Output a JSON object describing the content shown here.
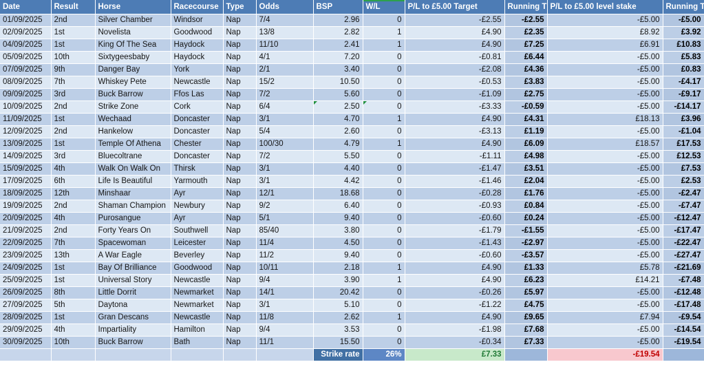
{
  "table": {
    "columns": [
      {
        "key": "date",
        "label": "Date"
      },
      {
        "key": "result",
        "label": "Result"
      },
      {
        "key": "horse",
        "label": "Horse"
      },
      {
        "key": "racecourse",
        "label": "Racecourse"
      },
      {
        "key": "type",
        "label": "Type"
      },
      {
        "key": "odds",
        "label": "Odds"
      },
      {
        "key": "bsp",
        "label": "BSP"
      },
      {
        "key": "wl",
        "label": "W/L"
      },
      {
        "key": "pl_target",
        "label": "P/L to £5.00 Target"
      },
      {
        "key": "run_target",
        "label": "Running T"
      },
      {
        "key": "pl_level",
        "label": "P/L to £5.00 level stake"
      },
      {
        "key": "run_level",
        "label": "Running T"
      }
    ],
    "rows": [
      {
        "date": "01/09/2025",
        "result": "2nd",
        "horse": "Silver Chamber",
        "racecourse": "Windsor",
        "type": "Nap",
        "odds": "7/4",
        "bsp": "2.96",
        "wl": "0",
        "pl_target": "-£2.55",
        "run_target": "-£2.55",
        "pl_level": "-£5.00",
        "run_level": "-£5.00"
      },
      {
        "date": "02/09/2025",
        "result": "1st",
        "horse": "Novelista",
        "racecourse": "Goodwood",
        "type": "Nap",
        "odds": "13/8",
        "bsp": "2.82",
        "wl": "1",
        "pl_target": "£4.90",
        "run_target": "£2.35",
        "pl_level": "£8.92",
        "run_level": "£3.92"
      },
      {
        "date": "04/09/2025",
        "result": "1st",
        "horse": "King Of The Sea",
        "racecourse": "Haydock",
        "type": "Nap",
        "odds": "11/10",
        "bsp": "2.41",
        "wl": "1",
        "pl_target": "£4.90",
        "run_target": "£7.25",
        "pl_level": "£6.91",
        "run_level": "£10.83"
      },
      {
        "date": "05/09/2025",
        "result": "10th",
        "horse": "Sixtygeesbaby",
        "racecourse": "Haydock",
        "type": "Nap",
        "odds": "4/1",
        "bsp": "7.20",
        "wl": "0",
        "pl_target": "-£0.81",
        "run_target": "£6.44",
        "pl_level": "-£5.00",
        "run_level": "£5.83"
      },
      {
        "date": "07/09/2025",
        "result": "9th",
        "horse": "Danger Bay",
        "racecourse": "York",
        "type": "Nap",
        "odds": "2/1",
        "bsp": "3.40",
        "wl": "0",
        "pl_target": "-£2.08",
        "run_target": "£4.36",
        "pl_level": "-£5.00",
        "run_level": "£0.83"
      },
      {
        "date": "08/09/2025",
        "result": "7th",
        "horse": "Whiskey Pete",
        "racecourse": "Newcastle",
        "type": "Nap",
        "odds": "15/2",
        "bsp": "10.50",
        "wl": "0",
        "pl_target": "-£0.53",
        "run_target": "£3.83",
        "pl_level": "-£5.00",
        "run_level": "-£4.17"
      },
      {
        "date": "09/09/2025",
        "result": "3rd",
        "horse": "Buck Barrow",
        "racecourse": "Ffos Las",
        "type": "Nap",
        "odds": "7/2",
        "bsp": "5.60",
        "wl": "0",
        "pl_target": "-£1.09",
        "run_target": "£2.75",
        "pl_level": "-£5.00",
        "run_level": "-£9.17"
      },
      {
        "date": "10/09/2025",
        "result": "2nd",
        "horse": "Strike Zone",
        "racecourse": "Cork",
        "type": "Nap",
        "odds": "6/4",
        "bsp": "2.50",
        "wl": "0",
        "pl_target": "-£3.33",
        "run_target": "-£0.59",
        "pl_level": "-£5.00",
        "run_level": "-£14.17",
        "flags": [
          "bsp",
          "wl"
        ]
      },
      {
        "date": "11/09/2025",
        "result": "1st",
        "horse": "Wechaad",
        "racecourse": "Doncaster",
        "type": "Nap",
        "odds": "3/1",
        "bsp": "4.70",
        "wl": "1",
        "pl_target": "£4.90",
        "run_target": "£4.31",
        "pl_level": "£18.13",
        "run_level": "£3.96"
      },
      {
        "date": "12/09/2025",
        "result": "2nd",
        "horse": "Hankelow",
        "racecourse": "Doncaster",
        "type": "Nap",
        "odds": "5/4",
        "bsp": "2.60",
        "wl": "0",
        "pl_target": "-£3.13",
        "run_target": "£1.19",
        "pl_level": "-£5.00",
        "run_level": "-£1.04"
      },
      {
        "date": "13/09/2025",
        "result": "1st",
        "horse": "Temple Of Athena",
        "racecourse": "Chester",
        "type": "Nap",
        "odds": "100/30",
        "bsp": "4.79",
        "wl": "1",
        "pl_target": "£4.90",
        "run_target": "£6.09",
        "pl_level": "£18.57",
        "run_level": "£17.53"
      },
      {
        "date": "14/09/2025",
        "result": "3rd",
        "horse": "Bluecoltrane",
        "racecourse": "Doncaster",
        "type": "Nap",
        "odds": "7/2",
        "bsp": "5.50",
        "wl": "0",
        "pl_target": "-£1.11",
        "run_target": "£4.98",
        "pl_level": "-£5.00",
        "run_level": "£12.53"
      },
      {
        "date": "15/09/2025",
        "result": "4th",
        "horse": "Walk On Walk On",
        "racecourse": "Thirsk",
        "type": "Nap",
        "odds": "3/1",
        "bsp": "4.40",
        "wl": "0",
        "pl_target": "-£1.47",
        "run_target": "£3.51",
        "pl_level": "-£5.00",
        "run_level": "£7.53"
      },
      {
        "date": "17/09/2025",
        "result": "6th",
        "horse": "Life Is Beautiful",
        "racecourse": "Yarmouth",
        "type": "Nap",
        "odds": "3/1",
        "bsp": "4.42",
        "wl": "0",
        "pl_target": "-£1.46",
        "run_target": "£2.04",
        "pl_level": "-£5.00",
        "run_level": "£2.53"
      },
      {
        "date": "18/09/2025",
        "result": "12th",
        "horse": "Minshaar",
        "racecourse": "Ayr",
        "type": "Nap",
        "odds": "12/1",
        "bsp": "18.68",
        "wl": "0",
        "pl_target": "-£0.28",
        "run_target": "£1.76",
        "pl_level": "-£5.00",
        "run_level": "-£2.47"
      },
      {
        "date": "19/09/2025",
        "result": "2nd",
        "horse": "Shaman Champion",
        "racecourse": "Newbury",
        "type": "Nap",
        "odds": "9/2",
        "bsp": "6.40",
        "wl": "0",
        "pl_target": "-£0.93",
        "run_target": "£0.84",
        "pl_level": "-£5.00",
        "run_level": "-£7.47"
      },
      {
        "date": "20/09/2025",
        "result": "4th",
        "horse": "Purosangue",
        "racecourse": "Ayr",
        "type": "Nap",
        "odds": "5/1",
        "bsp": "9.40",
        "wl": "0",
        "pl_target": "-£0.60",
        "run_target": "£0.24",
        "pl_level": "-£5.00",
        "run_level": "-£12.47"
      },
      {
        "date": "21/09/2025",
        "result": "2nd",
        "horse": "Forty Years On",
        "racecourse": "Southwell",
        "type": "Nap",
        "odds": "85/40",
        "bsp": "3.80",
        "wl": "0",
        "pl_target": "-£1.79",
        "run_target": "-£1.55",
        "pl_level": "-£5.00",
        "run_level": "-£17.47"
      },
      {
        "date": "22/09/2025",
        "result": "7th",
        "horse": "Spacewoman",
        "racecourse": "Leicester",
        "type": "Nap",
        "odds": "11/4",
        "bsp": "4.50",
        "wl": "0",
        "pl_target": "-£1.43",
        "run_target": "-£2.97",
        "pl_level": "-£5.00",
        "run_level": "-£22.47"
      },
      {
        "date": "23/09/2025",
        "result": "13th",
        "horse": "A War Eagle",
        "racecourse": "Beverley",
        "type": "Nap",
        "odds": "11/2",
        "bsp": "9.40",
        "wl": "0",
        "pl_target": "-£0.60",
        "run_target": "-£3.57",
        "pl_level": "-£5.00",
        "run_level": "-£27.47"
      },
      {
        "date": "24/09/2025",
        "result": "1st",
        "horse": "Bay Of Brilliance",
        "racecourse": "Goodwood",
        "type": "Nap",
        "odds": "10/11",
        "bsp": "2.18",
        "wl": "1",
        "pl_target": "£4.90",
        "run_target": "£1.33",
        "pl_level": "£5.78",
        "run_level": "-£21.69"
      },
      {
        "date": "25/09/2025",
        "result": "1st",
        "horse": "Universal Story",
        "racecourse": "Newcastle",
        "type": "Nap",
        "odds": "9/4",
        "bsp": "3.90",
        "wl": "1",
        "pl_target": "£4.90",
        "run_target": "£6.23",
        "pl_level": "£14.21",
        "run_level": "-£7.48"
      },
      {
        "date": "26/09/2025",
        "result": "8th",
        "horse": "Little Dorrit",
        "racecourse": "Newmarket",
        "type": "Nap",
        "odds": "14/1",
        "bsp": "20.42",
        "wl": "0",
        "pl_target": "-£0.26",
        "run_target": "£5.97",
        "pl_level": "-£5.00",
        "run_level": "-£12.48"
      },
      {
        "date": "27/09/2025",
        "result": "5th",
        "horse": "Daytona",
        "racecourse": "Newmarket",
        "type": "Nap",
        "odds": "3/1",
        "bsp": "5.10",
        "wl": "0",
        "pl_target": "-£1.22",
        "run_target": "£4.75",
        "pl_level": "-£5.00",
        "run_level": "-£17.48"
      },
      {
        "date": "28/09/2025",
        "result": "1st",
        "horse": "Gran Descans",
        "racecourse": "Newcastle",
        "type": "Nap",
        "odds": "11/8",
        "bsp": "2.62",
        "wl": "1",
        "pl_target": "£4.90",
        "run_target": "£9.65",
        "pl_level": "£7.94",
        "run_level": "-£9.54"
      },
      {
        "date": "29/09/2025",
        "result": "4th",
        "horse": "Impartiality",
        "racecourse": "Hamilton",
        "type": "Nap",
        "odds": "9/4",
        "bsp": "3.53",
        "wl": "0",
        "pl_target": "-£1.98",
        "run_target": "£7.68",
        "pl_level": "-£5.00",
        "run_level": "-£14.54"
      },
      {
        "date": "30/09/2025",
        "result": "10th",
        "horse": "Buck Barrow",
        "racecourse": "Bath",
        "type": "Nap",
        "odds": "11/1",
        "bsp": "15.50",
        "wl": "0",
        "pl_target": "-£0.34",
        "run_target": "£7.33",
        "pl_level": "-£5.00",
        "run_level": "-£19.54"
      }
    ],
    "totals": {
      "strike_rate_label": "Strike rate",
      "strike_rate_value": "26%",
      "target_total": "£7.33",
      "level_stake_total": "-£19.54"
    }
  },
  "colors": {
    "header_bg": "#4d7cb5",
    "band_a": "#bdcfe7",
    "band_b": "#dde8f4",
    "run_a": "#b1c5e0",
    "run_b": "#bccee6",
    "totals_left_bg": "#c7d6eb",
    "strike_label_bg": "#4170a4",
    "strike_value_bg": "#5d87c5",
    "totals_running_bg": "#9db7da",
    "total_pos_bg": "#c8e9ca",
    "total_pos_text": "#217a36",
    "total_neg_bg": "#f8c8ce",
    "total_neg_text": "#c00000",
    "flag_green": "#1e8e3e",
    "tick_green": "#2da04c"
  }
}
